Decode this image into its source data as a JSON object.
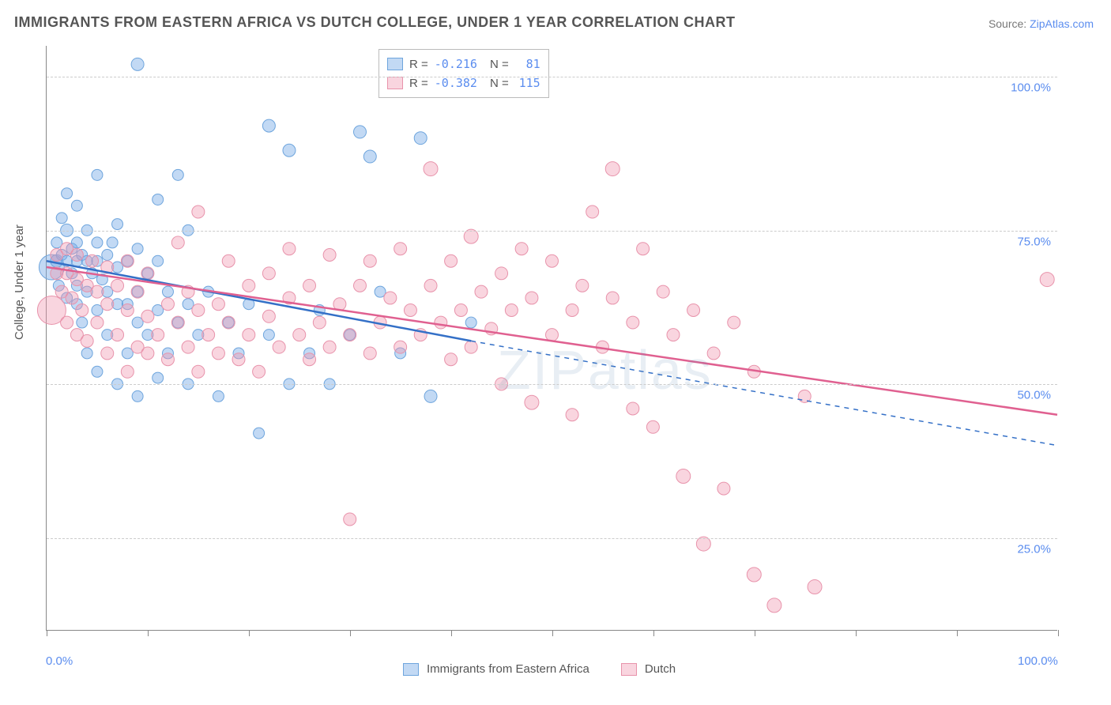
{
  "title": "IMMIGRANTS FROM EASTERN AFRICA VS DUTCH COLLEGE, UNDER 1 YEAR CORRELATION CHART",
  "source_prefix": "Source: ",
  "source_name": "ZipAtlas.com",
  "ylabel": "College, Under 1 year",
  "watermark": "ZIPatlas",
  "chart": {
    "type": "scatter",
    "background_color": "#ffffff",
    "grid_color": "#cccccc",
    "axis_color": "#888888",
    "label_color": "#555555",
    "tick_label_color": "#5b8def",
    "tick_fontsize": 15,
    "title_fontsize": 18,
    "xlim": [
      0,
      100
    ],
    "ylim": [
      10,
      105
    ],
    "x_ticks": [
      0,
      10,
      20,
      30,
      40,
      50,
      60,
      70,
      80,
      90,
      100
    ],
    "x_tick_labels": {
      "0": "0.0%",
      "100": "100.0%"
    },
    "y_gridlines": [
      25,
      50,
      75,
      100
    ],
    "y_tick_labels": {
      "25": "25.0%",
      "50": "50.0%",
      "75": "75.0%",
      "100": "100.0%"
    },
    "series": [
      {
        "name": "Immigrants from Eastern Africa",
        "fill": "rgba(120,170,230,0.45)",
        "stroke": "#6ea5dd",
        "line_color": "#3470c7",
        "R": "-0.216",
        "N": "81",
        "regression": {
          "x1": 0,
          "y1": 70,
          "x2_solid": 42,
          "y2_solid": 57,
          "x2_dash": 100,
          "y2_dash": 40
        },
        "points": [
          {
            "x": 0.5,
            "y": 69,
            "r": 16
          },
          {
            "x": 1,
            "y": 70,
            "r": 8
          },
          {
            "x": 1,
            "y": 73,
            "r": 7
          },
          {
            "x": 1.2,
            "y": 66,
            "r": 7
          },
          {
            "x": 1.5,
            "y": 71,
            "r": 7
          },
          {
            "x": 1.5,
            "y": 77,
            "r": 7
          },
          {
            "x": 2,
            "y": 64,
            "r": 7
          },
          {
            "x": 2,
            "y": 70,
            "r": 7
          },
          {
            "x": 2,
            "y": 75,
            "r": 8
          },
          {
            "x": 2,
            "y": 81,
            "r": 7
          },
          {
            "x": 2.5,
            "y": 68,
            "r": 7
          },
          {
            "x": 2.5,
            "y": 72,
            "r": 7
          },
          {
            "x": 3,
            "y": 63,
            "r": 7
          },
          {
            "x": 3,
            "y": 66,
            "r": 7
          },
          {
            "x": 3,
            "y": 70,
            "r": 7
          },
          {
            "x": 3,
            "y": 73,
            "r": 7
          },
          {
            "x": 3,
            "y": 79,
            "r": 7
          },
          {
            "x": 3.5,
            "y": 60,
            "r": 7
          },
          {
            "x": 3.5,
            "y": 71,
            "r": 7
          },
          {
            "x": 4,
            "y": 55,
            "r": 7
          },
          {
            "x": 4,
            "y": 65,
            "r": 7
          },
          {
            "x": 4,
            "y": 70,
            "r": 7
          },
          {
            "x": 4,
            "y": 75,
            "r": 7
          },
          {
            "x": 4.5,
            "y": 68,
            "r": 7
          },
          {
            "x": 5,
            "y": 52,
            "r": 7
          },
          {
            "x": 5,
            "y": 62,
            "r": 7
          },
          {
            "x": 5,
            "y": 70,
            "r": 7
          },
          {
            "x": 5,
            "y": 73,
            "r": 7
          },
          {
            "x": 5,
            "y": 84,
            "r": 7
          },
          {
            "x": 5.5,
            "y": 67,
            "r": 7
          },
          {
            "x": 6,
            "y": 58,
            "r": 7
          },
          {
            "x": 6,
            "y": 65,
            "r": 7
          },
          {
            "x": 6,
            "y": 71,
            "r": 7
          },
          {
            "x": 6.5,
            "y": 73,
            "r": 7
          },
          {
            "x": 7,
            "y": 50,
            "r": 7
          },
          {
            "x": 7,
            "y": 63,
            "r": 7
          },
          {
            "x": 7,
            "y": 69,
            "r": 7
          },
          {
            "x": 7,
            "y": 76,
            "r": 7
          },
          {
            "x": 8,
            "y": 55,
            "r": 7
          },
          {
            "x": 8,
            "y": 63,
            "r": 7
          },
          {
            "x": 8,
            "y": 70,
            "r": 7
          },
          {
            "x": 9,
            "y": 48,
            "r": 7
          },
          {
            "x": 9,
            "y": 60,
            "r": 7
          },
          {
            "x": 9,
            "y": 65,
            "r": 7
          },
          {
            "x": 9,
            "y": 72,
            "r": 7
          },
          {
            "x": 9,
            "y": 102,
            "r": 8
          },
          {
            "x": 10,
            "y": 58,
            "r": 7
          },
          {
            "x": 10,
            "y": 68,
            "r": 7
          },
          {
            "x": 11,
            "y": 51,
            "r": 7
          },
          {
            "x": 11,
            "y": 62,
            "r": 7
          },
          {
            "x": 11,
            "y": 70,
            "r": 7
          },
          {
            "x": 11,
            "y": 80,
            "r": 7
          },
          {
            "x": 12,
            "y": 55,
            "r": 7
          },
          {
            "x": 12,
            "y": 65,
            "r": 7
          },
          {
            "x": 13,
            "y": 60,
            "r": 7
          },
          {
            "x": 13,
            "y": 84,
            "r": 7
          },
          {
            "x": 14,
            "y": 50,
            "r": 7
          },
          {
            "x": 14,
            "y": 63,
            "r": 7
          },
          {
            "x": 14,
            "y": 75,
            "r": 7
          },
          {
            "x": 15,
            "y": 58,
            "r": 7
          },
          {
            "x": 16,
            "y": 65,
            "r": 7
          },
          {
            "x": 17,
            "y": 48,
            "r": 7
          },
          {
            "x": 18,
            "y": 60,
            "r": 7
          },
          {
            "x": 19,
            "y": 55,
            "r": 7
          },
          {
            "x": 20,
            "y": 63,
            "r": 7
          },
          {
            "x": 21,
            "y": 42,
            "r": 7
          },
          {
            "x": 22,
            "y": 58,
            "r": 7
          },
          {
            "x": 22,
            "y": 92,
            "r": 8
          },
          {
            "x": 24,
            "y": 50,
            "r": 7
          },
          {
            "x": 24,
            "y": 88,
            "r": 8
          },
          {
            "x": 26,
            "y": 55,
            "r": 7
          },
          {
            "x": 27,
            "y": 62,
            "r": 7
          },
          {
            "x": 28,
            "y": 50,
            "r": 7
          },
          {
            "x": 30,
            "y": 58,
            "r": 7
          },
          {
            "x": 31,
            "y": 91,
            "r": 8
          },
          {
            "x": 32,
            "y": 87,
            "r": 8
          },
          {
            "x": 33,
            "y": 65,
            "r": 7
          },
          {
            "x": 35,
            "y": 55,
            "r": 7
          },
          {
            "x": 37,
            "y": 90,
            "r": 8
          },
          {
            "x": 38,
            "y": 48,
            "r": 8
          },
          {
            "x": 42,
            "y": 60,
            "r": 7
          }
        ]
      },
      {
        "name": "Dutch",
        "fill": "rgba(240,150,175,0.40)",
        "stroke": "#e893ab",
        "line_color": "#e06090",
        "R": "-0.382",
        "N": "115",
        "regression": {
          "x1": 0,
          "y1": 69,
          "x2_solid": 100,
          "y2_solid": 45,
          "x2_dash": 100,
          "y2_dash": 45
        },
        "points": [
          {
            "x": 0.5,
            "y": 62,
            "r": 18
          },
          {
            "x": 1,
            "y": 68,
            "r": 8
          },
          {
            "x": 1,
            "y": 71,
            "r": 8
          },
          {
            "x": 1.5,
            "y": 65,
            "r": 8
          },
          {
            "x": 2,
            "y": 60,
            "r": 8
          },
          {
            "x": 2,
            "y": 68,
            "r": 8
          },
          {
            "x": 2,
            "y": 72,
            "r": 8
          },
          {
            "x": 2.5,
            "y": 64,
            "r": 8
          },
          {
            "x": 3,
            "y": 58,
            "r": 8
          },
          {
            "x": 3,
            "y": 67,
            "r": 8
          },
          {
            "x": 3,
            "y": 71,
            "r": 8
          },
          {
            "x": 3.5,
            "y": 62,
            "r": 8
          },
          {
            "x": 4,
            "y": 57,
            "r": 8
          },
          {
            "x": 4,
            "y": 66,
            "r": 8
          },
          {
            "x": 4.5,
            "y": 70,
            "r": 8
          },
          {
            "x": 5,
            "y": 60,
            "r": 8
          },
          {
            "x": 5,
            "y": 65,
            "r": 8
          },
          {
            "x": 6,
            "y": 55,
            "r": 8
          },
          {
            "x": 6,
            "y": 63,
            "r": 8
          },
          {
            "x": 6,
            "y": 69,
            "r": 8
          },
          {
            "x": 7,
            "y": 58,
            "r": 8
          },
          {
            "x": 7,
            "y": 66,
            "r": 8
          },
          {
            "x": 8,
            "y": 52,
            "r": 8
          },
          {
            "x": 8,
            "y": 62,
            "r": 8
          },
          {
            "x": 8,
            "y": 70,
            "r": 8
          },
          {
            "x": 9,
            "y": 56,
            "r": 8
          },
          {
            "x": 9,
            "y": 65,
            "r": 8
          },
          {
            "x": 10,
            "y": 55,
            "r": 8
          },
          {
            "x": 10,
            "y": 61,
            "r": 8
          },
          {
            "x": 10,
            "y": 68,
            "r": 8
          },
          {
            "x": 11,
            "y": 58,
            "r": 8
          },
          {
            "x": 12,
            "y": 54,
            "r": 8
          },
          {
            "x": 12,
            "y": 63,
            "r": 8
          },
          {
            "x": 13,
            "y": 60,
            "r": 8
          },
          {
            "x": 13,
            "y": 73,
            "r": 8
          },
          {
            "x": 14,
            "y": 56,
            "r": 8
          },
          {
            "x": 14,
            "y": 65,
            "r": 8
          },
          {
            "x": 15,
            "y": 52,
            "r": 8
          },
          {
            "x": 15,
            "y": 62,
            "r": 8
          },
          {
            "x": 15,
            "y": 78,
            "r": 8
          },
          {
            "x": 16,
            "y": 58,
            "r": 8
          },
          {
            "x": 17,
            "y": 55,
            "r": 8
          },
          {
            "x": 17,
            "y": 63,
            "r": 8
          },
          {
            "x": 18,
            "y": 60,
            "r": 8
          },
          {
            "x": 18,
            "y": 70,
            "r": 8
          },
          {
            "x": 19,
            "y": 54,
            "r": 8
          },
          {
            "x": 20,
            "y": 58,
            "r": 8
          },
          {
            "x": 20,
            "y": 66,
            "r": 8
          },
          {
            "x": 21,
            "y": 52,
            "r": 8
          },
          {
            "x": 22,
            "y": 61,
            "r": 8
          },
          {
            "x": 22,
            "y": 68,
            "r": 8
          },
          {
            "x": 23,
            "y": 56,
            "r": 8
          },
          {
            "x": 24,
            "y": 64,
            "r": 8
          },
          {
            "x": 24,
            "y": 72,
            "r": 8
          },
          {
            "x": 25,
            "y": 58,
            "r": 8
          },
          {
            "x": 26,
            "y": 54,
            "r": 8
          },
          {
            "x": 26,
            "y": 66,
            "r": 8
          },
          {
            "x": 27,
            "y": 60,
            "r": 8
          },
          {
            "x": 28,
            "y": 56,
            "r": 8
          },
          {
            "x": 28,
            "y": 71,
            "r": 8
          },
          {
            "x": 29,
            "y": 63,
            "r": 8
          },
          {
            "x": 30,
            "y": 28,
            "r": 8
          },
          {
            "x": 30,
            "y": 58,
            "r": 8
          },
          {
            "x": 31,
            "y": 66,
            "r": 8
          },
          {
            "x": 32,
            "y": 55,
            "r": 8
          },
          {
            "x": 32,
            "y": 70,
            "r": 8
          },
          {
            "x": 33,
            "y": 60,
            "r": 8
          },
          {
            "x": 34,
            "y": 64,
            "r": 8
          },
          {
            "x": 35,
            "y": 56,
            "r": 8
          },
          {
            "x": 35,
            "y": 72,
            "r": 8
          },
          {
            "x": 36,
            "y": 62,
            "r": 8
          },
          {
            "x": 37,
            "y": 58,
            "r": 8
          },
          {
            "x": 38,
            "y": 66,
            "r": 8
          },
          {
            "x": 38,
            "y": 85,
            "r": 9
          },
          {
            "x": 39,
            "y": 60,
            "r": 8
          },
          {
            "x": 40,
            "y": 54,
            "r": 8
          },
          {
            "x": 40,
            "y": 70,
            "r": 8
          },
          {
            "x": 41,
            "y": 62,
            "r": 8
          },
          {
            "x": 42,
            "y": 56,
            "r": 8
          },
          {
            "x": 42,
            "y": 74,
            "r": 9
          },
          {
            "x": 43,
            "y": 65,
            "r": 8
          },
          {
            "x": 44,
            "y": 59,
            "r": 8
          },
          {
            "x": 45,
            "y": 50,
            "r": 8
          },
          {
            "x": 45,
            "y": 68,
            "r": 8
          },
          {
            "x": 46,
            "y": 62,
            "r": 8
          },
          {
            "x": 47,
            "y": 72,
            "r": 8
          },
          {
            "x": 48,
            "y": 47,
            "r": 9
          },
          {
            "x": 48,
            "y": 64,
            "r": 8
          },
          {
            "x": 50,
            "y": 58,
            "r": 8
          },
          {
            "x": 50,
            "y": 70,
            "r": 8
          },
          {
            "x": 52,
            "y": 45,
            "r": 8
          },
          {
            "x": 52,
            "y": 62,
            "r": 8
          },
          {
            "x": 53,
            "y": 66,
            "r": 8
          },
          {
            "x": 54,
            "y": 78,
            "r": 8
          },
          {
            "x": 55,
            "y": 56,
            "r": 8
          },
          {
            "x": 56,
            "y": 64,
            "r": 8
          },
          {
            "x": 56,
            "y": 85,
            "r": 9
          },
          {
            "x": 58,
            "y": 46,
            "r": 8
          },
          {
            "x": 58,
            "y": 60,
            "r": 8
          },
          {
            "x": 59,
            "y": 72,
            "r": 8
          },
          {
            "x": 60,
            "y": 43,
            "r": 8
          },
          {
            "x": 61,
            "y": 65,
            "r": 8
          },
          {
            "x": 62,
            "y": 58,
            "r": 8
          },
          {
            "x": 63,
            "y": 35,
            "r": 9
          },
          {
            "x": 64,
            "y": 62,
            "r": 8
          },
          {
            "x": 65,
            "y": 24,
            "r": 9
          },
          {
            "x": 66,
            "y": 55,
            "r": 8
          },
          {
            "x": 67,
            "y": 33,
            "r": 8
          },
          {
            "x": 68,
            "y": 60,
            "r": 8
          },
          {
            "x": 70,
            "y": 19,
            "r": 9
          },
          {
            "x": 70,
            "y": 52,
            "r": 8
          },
          {
            "x": 72,
            "y": 14,
            "r": 9
          },
          {
            "x": 75,
            "y": 48,
            "r": 8
          },
          {
            "x": 76,
            "y": 17,
            "r": 9
          },
          {
            "x": 99,
            "y": 67,
            "r": 9
          }
        ]
      }
    ]
  },
  "legend_bottom": {
    "series1_label": "Immigrants from Eastern Africa",
    "series2_label": "Dutch"
  }
}
